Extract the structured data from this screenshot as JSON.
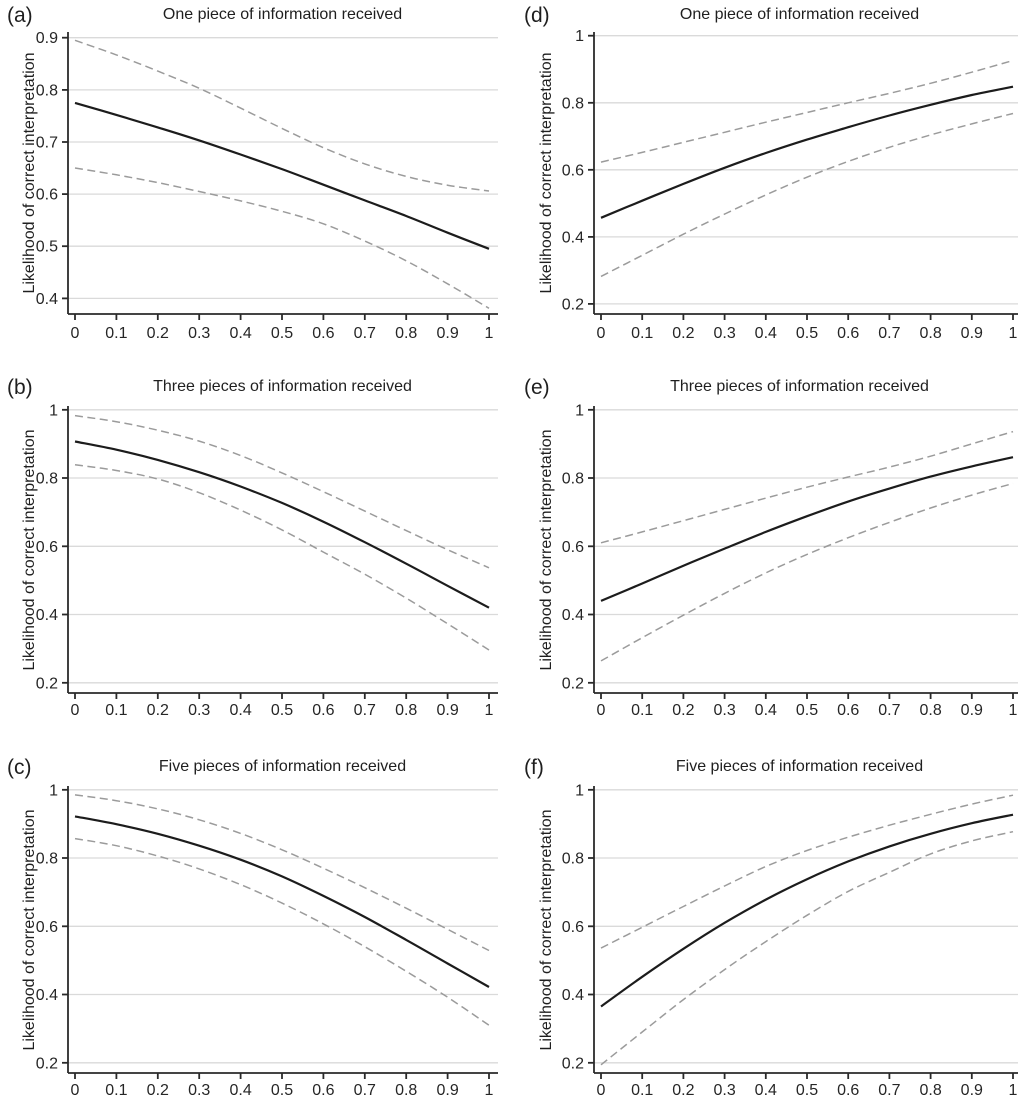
{
  "colors": {
    "background": "#ffffff",
    "solid_line": "#1c1c1c",
    "dashed_line": "#9b9b9b",
    "gridline": "#dadada",
    "axis": "#2a2a2a",
    "text": "#262626"
  },
  "chart_data": [
    {
      "type": "line",
      "panel_label": "(a)",
      "title": "One piece of information received",
      "ylabel": "Likelihood of correct interpretation",
      "xlabel": "",
      "grid": "horizontal",
      "legend": "none",
      "xlim": [
        0,
        1
      ],
      "ylim": [
        0.4,
        0.9
      ],
      "x": [
        0,
        0.1,
        0.2,
        0.3,
        0.4,
        0.5,
        0.6,
        0.7,
        0.8,
        0.9,
        1
      ],
      "xtick_labels": [
        "0",
        "0.1",
        "0.2",
        "0.3",
        "0.4",
        "0.5",
        "0.6",
        "0.7",
        "0.8",
        "0.9",
        "1"
      ],
      "yticks": [
        0.4,
        0.5,
        0.6,
        0.7,
        0.8,
        0.9
      ],
      "ytick_labels": [
        "0.4",
        "0.5",
        "0.6",
        "0.7",
        "0.8",
        "0.9"
      ],
      "series": [
        {
          "name": "predicted-solid-line",
          "style": "solid",
          "values": [
            0.775,
            0.752,
            0.728,
            0.703,
            0.676,
            0.648,
            0.618,
            0.588,
            0.558,
            0.526,
            0.495
          ]
        },
        {
          "name": "upper-dashed-line",
          "style": "dashed",
          "values": [
            0.895,
            0.867,
            0.836,
            0.803,
            0.765,
            0.726,
            0.689,
            0.658,
            0.634,
            0.617,
            0.606
          ]
        },
        {
          "name": "lower-dashed-line",
          "style": "dashed",
          "values": [
            0.65,
            0.637,
            0.622,
            0.605,
            0.587,
            0.567,
            0.543,
            0.51,
            0.472,
            0.428,
            0.381
          ]
        }
      ]
    },
    {
      "type": "line",
      "panel_label": "(d)",
      "title": "One piece of information received",
      "ylabel": "Likelihood of correct interpretation",
      "xlabel": "",
      "grid": "horizontal",
      "legend": "none",
      "xlim": [
        0,
        1
      ],
      "ylim": [
        0.2,
        1
      ],
      "x": [
        0,
        0.1,
        0.2,
        0.3,
        0.4,
        0.5,
        0.6,
        0.7,
        0.8,
        0.9,
        1
      ],
      "xtick_labels": [
        "0",
        "0.1",
        "0.2",
        "0.3",
        "0.4",
        "0.5",
        "0.6",
        "0.7",
        "0.8",
        "0.9",
        "1"
      ],
      "yticks": [
        0.2,
        0.4,
        0.6,
        0.8,
        1
      ],
      "ytick_labels": [
        "0.2",
        "0.4",
        "0.6",
        "0.8",
        "1"
      ],
      "series": [
        {
          "name": "predicted-solid-line",
          "style": "solid",
          "values": [
            0.457,
            0.508,
            0.558,
            0.606,
            0.65,
            0.69,
            0.727,
            0.762,
            0.794,
            0.823,
            0.848
          ]
        },
        {
          "name": "upper-dashed-line",
          "style": "dashed",
          "values": [
            0.623,
            0.652,
            0.682,
            0.712,
            0.742,
            0.771,
            0.8,
            0.828,
            0.858,
            0.891,
            0.926
          ]
        },
        {
          "name": "lower-dashed-line",
          "style": "dashed",
          "values": [
            0.282,
            0.345,
            0.408,
            0.468,
            0.525,
            0.578,
            0.625,
            0.667,
            0.704,
            0.737,
            0.768
          ]
        }
      ]
    },
    {
      "type": "line",
      "panel_label": "(b)",
      "title": "Three pieces of information received",
      "ylabel": "Likelihood of correct interpretation",
      "xlabel": "",
      "grid": "horizontal",
      "legend": "none",
      "xlim": [
        0,
        1
      ],
      "ylim": [
        0.2,
        1
      ],
      "x": [
        0,
        0.1,
        0.2,
        0.3,
        0.4,
        0.5,
        0.6,
        0.7,
        0.8,
        0.9,
        1
      ],
      "xtick_labels": [
        "0",
        "0.1",
        "0.2",
        "0.3",
        "0.4",
        "0.5",
        "0.6",
        "0.7",
        "0.8",
        "0.9",
        "1"
      ],
      "yticks": [
        0.2,
        0.4,
        0.6,
        0.8,
        1
      ],
      "ytick_labels": [
        "0.2",
        "0.4",
        "0.6",
        "0.8",
        "1"
      ],
      "series": [
        {
          "name": "predicted-solid-line",
          "style": "solid",
          "values": [
            0.907,
            0.883,
            0.853,
            0.817,
            0.775,
            0.727,
            0.672,
            0.612,
            0.549,
            0.484,
            0.42
          ]
        },
        {
          "name": "upper-dashed-line",
          "style": "dashed",
          "values": [
            0.983,
            0.965,
            0.94,
            0.908,
            0.866,
            0.815,
            0.76,
            0.703,
            0.646,
            0.59,
            0.537
          ]
        },
        {
          "name": "lower-dashed-line",
          "style": "dashed",
          "values": [
            0.839,
            0.822,
            0.797,
            0.757,
            0.706,
            0.648,
            0.583,
            0.518,
            0.448,
            0.373,
            0.296
          ]
        }
      ]
    },
    {
      "type": "line",
      "panel_label": "(e)",
      "title": "Three pieces of information received",
      "ylabel": "Likelihood of correct interpretation",
      "xlabel": "",
      "grid": "horizontal",
      "legend": "none",
      "xlim": [
        0,
        1
      ],
      "ylim": [
        0.2,
        1
      ],
      "x": [
        0,
        0.1,
        0.2,
        0.3,
        0.4,
        0.5,
        0.6,
        0.7,
        0.8,
        0.9,
        1
      ],
      "xtick_labels": [
        "0",
        "0.1",
        "0.2",
        "0.3",
        "0.4",
        "0.5",
        "0.6",
        "0.7",
        "0.8",
        "0.9",
        "1"
      ],
      "yticks": [
        0.2,
        0.4,
        0.6,
        0.8,
        1
      ],
      "ytick_labels": [
        "0.2",
        "0.4",
        "0.6",
        "0.8",
        "1"
      ],
      "series": [
        {
          "name": "predicted-solid-line",
          "style": "solid",
          "values": [
            0.44,
            0.491,
            0.543,
            0.593,
            0.642,
            0.688,
            0.731,
            0.769,
            0.804,
            0.834,
            0.861
          ]
        },
        {
          "name": "upper-dashed-line",
          "style": "dashed",
          "values": [
            0.61,
            0.642,
            0.675,
            0.708,
            0.741,
            0.773,
            0.803,
            0.832,
            0.864,
            0.9,
            0.936
          ]
        },
        {
          "name": "lower-dashed-line",
          "style": "dashed",
          "values": [
            0.264,
            0.332,
            0.398,
            0.462,
            0.522,
            0.576,
            0.625,
            0.67,
            0.712,
            0.75,
            0.784
          ]
        }
      ]
    },
    {
      "type": "line",
      "panel_label": "(c)",
      "title": "Five pieces of information received",
      "ylabel": "Likelihood of correct interpretation",
      "xlabel": "",
      "grid": "horizontal",
      "legend": "none",
      "xlim": [
        0,
        1
      ],
      "ylim": [
        0.2,
        1
      ],
      "x": [
        0,
        0.1,
        0.2,
        0.3,
        0.4,
        0.5,
        0.6,
        0.7,
        0.8,
        0.9,
        1
      ],
      "xtick_labels": [
        "0",
        "0.1",
        "0.2",
        "0.3",
        "0.4",
        "0.5",
        "0.6",
        "0.7",
        "0.8",
        "0.9",
        "1"
      ],
      "yticks": [
        0.2,
        0.4,
        0.6,
        0.8,
        1
      ],
      "ytick_labels": [
        "0.2",
        "0.4",
        "0.6",
        "0.8",
        "1"
      ],
      "series": [
        {
          "name": "predicted-solid-line",
          "style": "solid",
          "values": [
            0.922,
            0.899,
            0.871,
            0.836,
            0.795,
            0.746,
            0.689,
            0.627,
            0.56,
            0.491,
            0.422
          ]
        },
        {
          "name": "upper-dashed-line",
          "style": "dashed",
          "values": [
            0.985,
            0.968,
            0.944,
            0.912,
            0.872,
            0.824,
            0.77,
            0.713,
            0.653,
            0.591,
            0.529
          ]
        },
        {
          "name": "lower-dashed-line",
          "style": "dashed",
          "values": [
            0.857,
            0.836,
            0.806,
            0.768,
            0.722,
            0.668,
            0.607,
            0.54,
            0.468,
            0.392,
            0.31
          ]
        }
      ]
    },
    {
      "type": "line",
      "panel_label": "(f)",
      "title": "Five pieces of information received",
      "ylabel": "Likelihood of correct interpretation",
      "xlabel": "",
      "grid": "horizontal",
      "legend": "none",
      "xlim": [
        0,
        1
      ],
      "ylim": [
        0.2,
        1
      ],
      "x": [
        0,
        0.1,
        0.2,
        0.3,
        0.4,
        0.5,
        0.6,
        0.7,
        0.8,
        0.9,
        1
      ],
      "xtick_labels": [
        "0",
        "0.1",
        "0.2",
        "0.3",
        "0.4",
        "0.5",
        "0.6",
        "0.7",
        "0.8",
        "0.9",
        "1"
      ],
      "yticks": [
        0.2,
        0.4,
        0.6,
        0.8,
        1
      ],
      "ytick_labels": [
        "0.2",
        "0.4",
        "0.6",
        "0.8",
        "1"
      ],
      "series": [
        {
          "name": "predicted-solid-line",
          "style": "solid",
          "values": [
            0.365,
            0.452,
            0.534,
            0.61,
            0.678,
            0.738,
            0.79,
            0.834,
            0.871,
            0.902,
            0.927
          ]
        },
        {
          "name": "upper-dashed-line",
          "style": "dashed",
          "values": [
            0.536,
            0.597,
            0.658,
            0.718,
            0.775,
            0.822,
            0.861,
            0.896,
            0.928,
            0.958,
            0.984
          ]
        },
        {
          "name": "lower-dashed-line",
          "style": "dashed",
          "values": [
            0.194,
            0.29,
            0.385,
            0.473,
            0.555,
            0.632,
            0.702,
            0.758,
            0.812,
            0.85,
            0.877
          ]
        }
      ]
    }
  ]
}
